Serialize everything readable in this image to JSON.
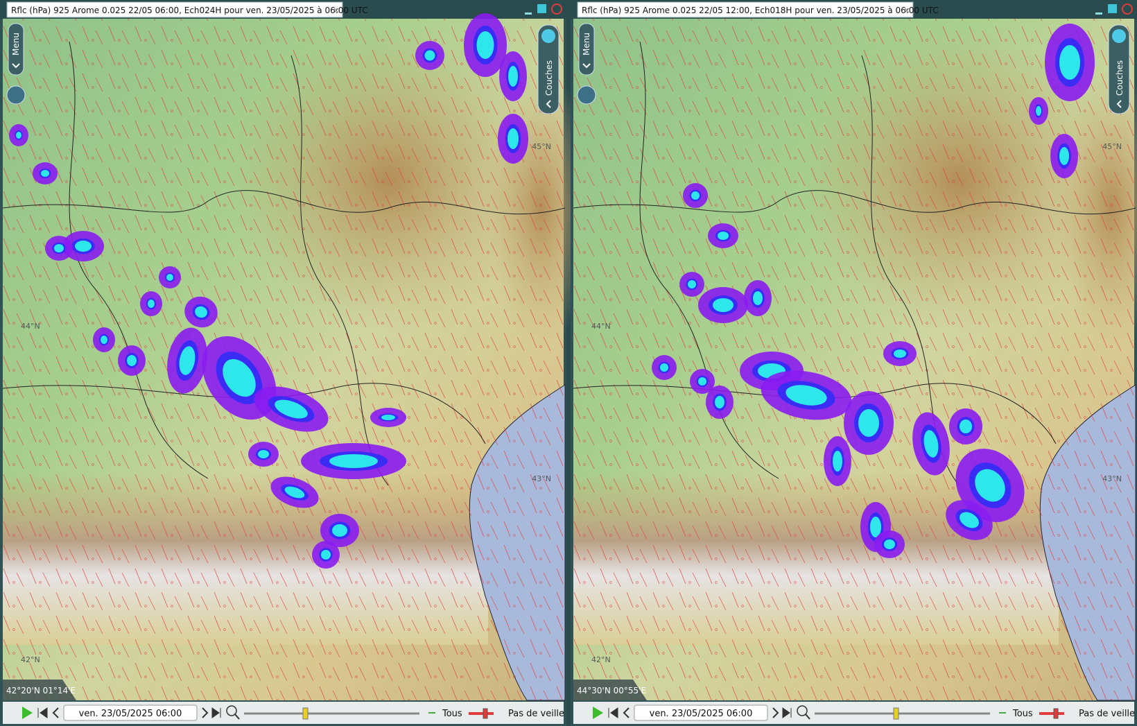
{
  "panels": [
    {
      "title": "Rflc (hPa) 925 Arome 0.025 22/05 06:00, Ech024H pour ven. 23/05/2025 à 06:00 UTC",
      "menu": "Menu",
      "layers": "Couches",
      "lat_labels": [
        "45°N",
        "44°N",
        "43°N",
        "42°N"
      ],
      "coordinates": "42°20'N 01°14'E",
      "date": "ven. 23/05/2025 06:00",
      "filter": "Tous",
      "watch": "Pas de veille"
    },
    {
      "title": "Rflc (hPa) 925 Arome 0.025 22/05 12:00, Ech018H pour ven. 23/05/2025 à 06:00 UTC",
      "menu": "Menu",
      "layers": "Couches",
      "lat_labels": [
        "45°N",
        "44°N",
        "43°N",
        "42°N"
      ],
      "coordinates": "44°30'N 00°55'E",
      "date": "ven. 23/05/2025 06:00",
      "filter": "Tous",
      "watch": "Pas de veille"
    }
  ]
}
